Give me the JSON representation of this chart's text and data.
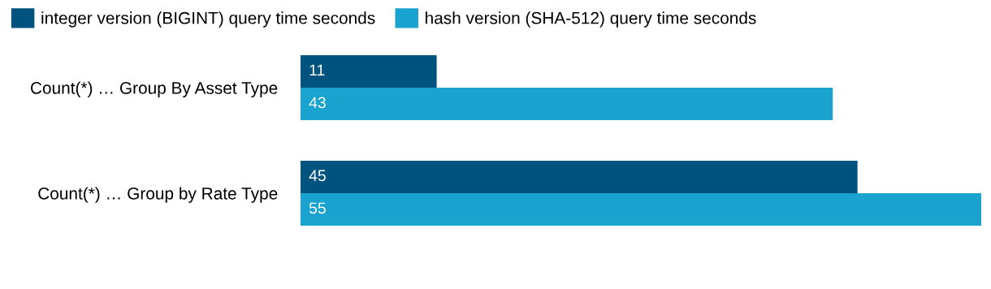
{
  "chart_data": {
    "type": "bar",
    "orientation": "horizontal",
    "categories": [
      "Count(*) … Group By Asset Type",
      "Count(*) … Group by Rate Type"
    ],
    "series": [
      {
        "name": "integer version (BIGINT) query time seconds",
        "color": "#00537e",
        "values": [
          11,
          45
        ]
      },
      {
        "name": "hash version (SHA-512) query time seconds",
        "color": "#1aa3cf",
        "values": [
          43,
          55
        ]
      }
    ],
    "data_labels": true,
    "legend": "top left",
    "grid": false
  }
}
